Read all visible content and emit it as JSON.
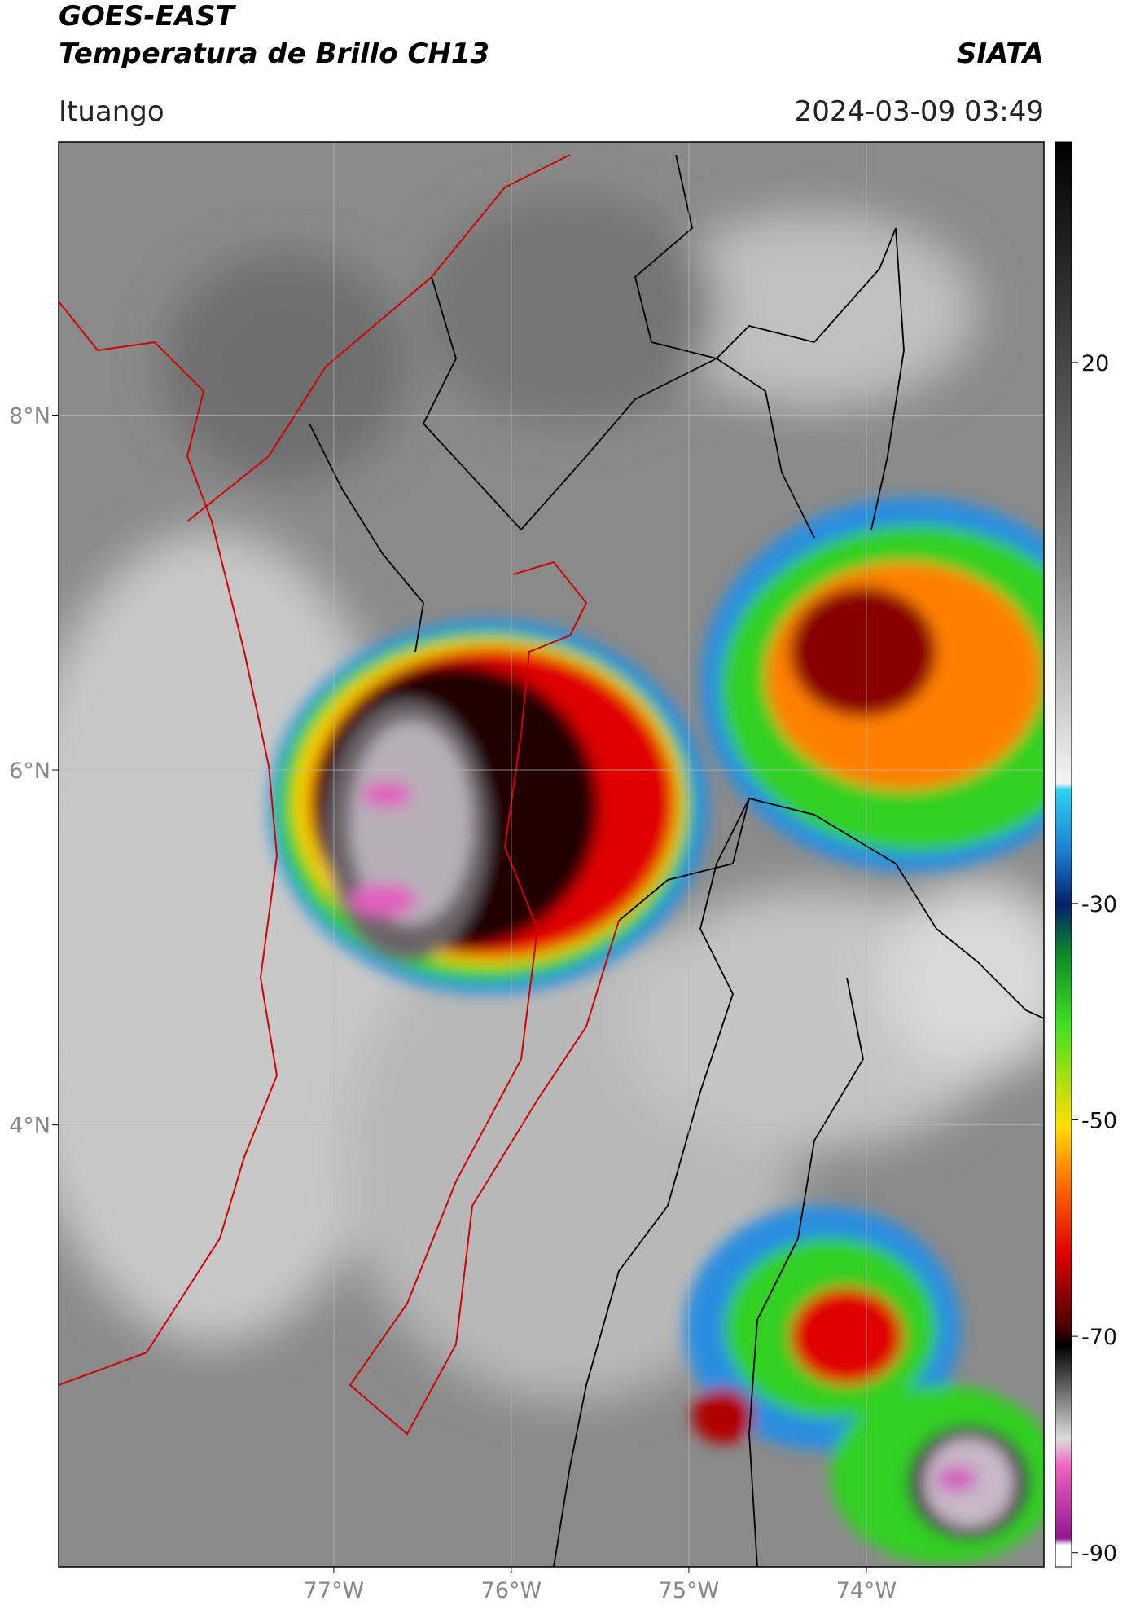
{
  "header": {
    "title": "GOES-EAST",
    "subtitle": "Temperatura de Brillo CH13",
    "org": "SIATA",
    "location": "Ituango",
    "timestamp": "2024-03-09 03:49"
  },
  "map": {
    "xlim": [
      -78.55,
      -73.0
    ],
    "ylim": [
      1.51,
      9.54
    ],
    "grid": true,
    "xticks": [
      {
        "value": -77,
        "label": "77°W"
      },
      {
        "value": -76,
        "label": "76°W"
      },
      {
        "value": -75,
        "label": "75°W"
      },
      {
        "value": -74,
        "label": "74°W"
      }
    ],
    "yticks": [
      {
        "value": 8,
        "label": "8°N"
      },
      {
        "value": 6,
        "label": "6°N"
      },
      {
        "value": 4,
        "label": "4°N"
      }
    ]
  },
  "colorbar": {
    "clim": [
      -91.3,
      40.4
    ],
    "ticks": [
      20,
      -30,
      -50,
      -70,
      -90
    ]
  }
}
